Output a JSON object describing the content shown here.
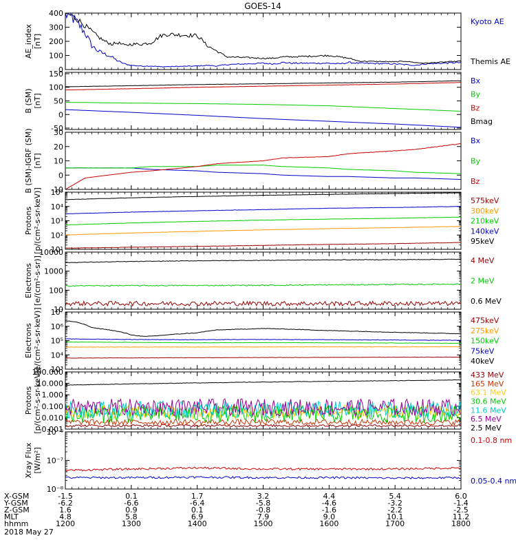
{
  "title": "GOES-14",
  "date_label": "2018 May 27",
  "chart_data": [
    {
      "id": "ae",
      "type": "line",
      "ylabel": [
        "AE_index",
        "[nT]"
      ],
      "yscale": "linear",
      "ylim": [
        0,
        400
      ],
      "yticks": [
        0,
        100,
        200,
        300,
        400
      ],
      "ytick_labels": [
        "0",
        "100",
        "200",
        "300",
        "400"
      ],
      "series": [
        {
          "name": "Kyoto AE",
          "color": "#0000cc",
          "x": [
            1200,
            1210,
            1220,
            1230,
            1240,
            1250,
            1260,
            1270,
            1280,
            1290,
            1300,
            1315,
            1330,
            1345,
            1400,
            1415,
            1430,
            1445,
            1500,
            1515,
            1530,
            1545,
            1600,
            1615,
            1630,
            1645,
            1700,
            1715,
            1730,
            1745,
            1800
          ],
          "values": [
            390,
            370,
            320,
            260,
            170,
            130,
            110,
            90,
            60,
            40,
            30,
            25,
            25,
            20,
            25,
            30,
            25,
            35,
            45,
            40,
            50,
            45,
            45,
            40,
            50,
            45,
            40,
            35,
            30,
            40,
            50
          ],
          "noise": 0.12
        },
        {
          "name": "Themis AE",
          "color": "#000000",
          "x": [
            1200,
            1210,
            1220,
            1230,
            1240,
            1250,
            1260,
            1270,
            1280,
            1290,
            1300,
            1315,
            1330,
            1345,
            1355,
            1400,
            1405,
            1415,
            1430,
            1445,
            1500,
            1515,
            1530,
            1545,
            1600,
            1615,
            1630,
            1645,
            1700,
            1715,
            1730,
            1745,
            1800
          ],
          "values": [
            400,
            380,
            350,
            310,
            270,
            230,
            200,
            180,
            190,
            170,
            180,
            180,
            190,
            240,
            250,
            240,
            220,
            170,
            130,
            90,
            80,
            80,
            90,
            90,
            100,
            90,
            80,
            60,
            55,
            60,
            50,
            45,
            60
          ],
          "noise": 0.06
        }
      ]
    },
    {
      "id": "bsm",
      "type": "line",
      "ylabel": [
        "B (SM)",
        "[nT]"
      ],
      "yscale": "linear",
      "ylim": [
        -55,
        155
      ],
      "yticks": [
        -50,
        0,
        50,
        100,
        150
      ],
      "ytick_labels": [
        "-50",
        "0",
        "50",
        "100",
        "150"
      ],
      "series": [
        {
          "name": "Bx",
          "color": "#0000cc",
          "x": [
            1200,
            1300,
            1400,
            1500,
            1600,
            1700,
            1800
          ],
          "values": [
            18,
            8,
            -3,
            -15,
            -25,
            -35,
            -47
          ],
          "noise": 0.004
        },
        {
          "name": "By",
          "color": "#00cc00",
          "x": [
            1200,
            1300,
            1400,
            1500,
            1600,
            1700,
            1800
          ],
          "values": [
            45,
            42,
            40,
            37,
            32,
            22,
            12
          ],
          "noise": 0.004
        },
        {
          "name": "Bz",
          "color": "#cc0000",
          "x": [
            1200,
            1300,
            1400,
            1500,
            1600,
            1700,
            1800
          ],
          "values": [
            90,
            95,
            100,
            104,
            108,
            112,
            118
          ],
          "noise": 0.004
        },
        {
          "name": "Bmag",
          "color": "#000000",
          "x": [
            1200,
            1300,
            1400,
            1500,
            1600,
            1700,
            1800
          ],
          "values": [
            102,
            106,
            110,
            113,
            116,
            119,
            124
          ],
          "noise": 0.004
        }
      ]
    },
    {
      "id": "bigrf",
      "type": "line",
      "ylabel": [
        "B (SM)-IGRF (SM)",
        "[nT]"
      ],
      "yscale": "linear",
      "ylim": [
        -10,
        30
      ],
      "yticks": [
        -10,
        0,
        10,
        20,
        30
      ],
      "ytick_labels": [
        "-10",
        "0",
        "10",
        "20",
        "30"
      ],
      "series": [
        {
          "name": "Bx",
          "color": "#0000cc",
          "x": [
            1200,
            1230,
            1300,
            1330,
            1400,
            1430,
            1500,
            1530,
            1600,
            1630,
            1700,
            1730,
            1800
          ],
          "values": [
            5,
            5,
            5,
            4,
            3,
            2,
            1,
            0,
            -1,
            -1,
            -2,
            -2,
            -3
          ],
          "noise": 0.01
        },
        {
          "name": "By",
          "color": "#00cc00",
          "x": [
            1200,
            1230,
            1300,
            1330,
            1400,
            1430,
            1500,
            1530,
            1600,
            1630,
            1700,
            1730,
            1800
          ],
          "values": [
            5,
            5,
            5,
            6,
            6,
            7,
            7,
            6,
            5,
            4,
            3,
            2,
            1
          ],
          "noise": 0.01
        },
        {
          "name": "Bz",
          "color": "#cc0000",
          "x": [
            1200,
            1230,
            1300,
            1330,
            1400,
            1430,
            1500,
            1530,
            1600,
            1630,
            1700,
            1730,
            1800
          ],
          "values": [
            -10,
            -2,
            2,
            3,
            6,
            8,
            10,
            12,
            13,
            15,
            17,
            18,
            22
          ],
          "noise": 0.01
        }
      ]
    },
    {
      "id": "protons_low",
      "type": "line",
      "ylabel": [
        "Protons",
        "[p/(cm²-s-sr-keV)]"
      ],
      "yscale": "log",
      "ylim": [
        10,
        100000
      ],
      "yticks": [
        10,
        100,
        1000,
        10000,
        100000
      ],
      "ytick_labels": [
        "10¹",
        "10²",
        "10³",
        "10⁴",
        "10⁵"
      ],
      "series": [
        {
          "name": "575keV",
          "color": "#990000",
          "x": [
            1200,
            1300,
            1400,
            1500,
            1600,
            1700,
            1800
          ],
          "values": [
            12,
            14,
            16,
            19,
            22,
            25,
            30
          ],
          "noise": 0.01
        },
        {
          "name": "300keV",
          "color": "#ff9900",
          "x": [
            1200,
            1300,
            1400,
            1500,
            1600,
            1700,
            1800
          ],
          "values": [
            100,
            140,
            180,
            230,
            280,
            330,
            400
          ],
          "noise": 0.01
        },
        {
          "name": "210keV",
          "color": "#00cc00",
          "x": [
            1200,
            1300,
            1400,
            1500,
            1600,
            1700,
            1800
          ],
          "values": [
            500,
            700,
            900,
            1100,
            1300,
            1500,
            1800
          ],
          "noise": 0.01
        },
        {
          "name": "140keV",
          "color": "#0000cc",
          "x": [
            1200,
            1300,
            1400,
            1500,
            1600,
            1700,
            1800
          ],
          "values": [
            3000,
            4000,
            5000,
            6000,
            7500,
            8500,
            10000
          ],
          "noise": 0.01
        },
        {
          "name": "95keV",
          "color": "#000000",
          "x": [
            1200,
            1300,
            1400,
            1500,
            1600,
            1700,
            1800
          ],
          "values": [
            30000,
            40000,
            50000,
            60000,
            70000,
            80000,
            90000
          ],
          "noise": 0.01
        }
      ]
    },
    {
      "id": "electrons_high",
      "type": "line",
      "ylabel": [
        "Electrons",
        "[e/(cm²-s-sr)]"
      ],
      "yscale": "log",
      "ylim": [
        10,
        10000
      ],
      "yticks": [
        10,
        100,
        1000,
        10000
      ],
      "ytick_labels": [
        "10",
        "100",
        "1000",
        "10000"
      ],
      "series": [
        {
          "name": "4 MeV",
          "color": "#990000",
          "x": [
            1200,
            1800
          ],
          "values": [
            20,
            20
          ],
          "noise": 0.12
        },
        {
          "name": "2 MeV",
          "color": "#00cc00",
          "x": [
            1200,
            1500,
            1800
          ],
          "values": [
            170,
            180,
            210
          ],
          "noise": 0.03
        },
        {
          "name": "0.6 MeV",
          "color": "#000000",
          "x": [
            1200,
            1300,
            1400,
            1500,
            1600,
            1700,
            1800
          ],
          "values": [
            2800,
            3200,
            3500,
            3700,
            3900,
            4000,
            4200
          ],
          "noise": 0.015
        }
      ]
    },
    {
      "id": "electrons_low",
      "type": "line",
      "ylabel": [
        "Electrons",
        "[e/(cm²-s-sr-keV)]"
      ],
      "yscale": "log",
      "ylim": [
        1000,
        10000000
      ],
      "yticks": [
        1000,
        10000,
        100000,
        1000000,
        10000000
      ],
      "ytick_labels": [
        "10³",
        "10⁴",
        "10⁵",
        "10⁶",
        "10⁷"
      ],
      "series": [
        {
          "name": "475keV",
          "color": "#990000",
          "x": [
            1200,
            1500,
            1800
          ],
          "values": [
            6000,
            6500,
            7000
          ],
          "noise": 0.01
        },
        {
          "name": "275keV",
          "color": "#ff9900",
          "x": [
            1200,
            1500,
            1800
          ],
          "values": [
            35000,
            36000,
            37000
          ],
          "noise": 0.01
        },
        {
          "name": "150keV",
          "color": "#00cc00",
          "x": [
            1200,
            1300,
            1400,
            1500,
            1600,
            1700,
            1800
          ],
          "values": [
            80000,
            75000,
            70000,
            72000,
            70000,
            68000,
            65000
          ],
          "noise": 0.01
        },
        {
          "name": "75keV",
          "color": "#0000cc",
          "x": [
            1200,
            1300,
            1400,
            1500,
            1600,
            1700,
            1800
          ],
          "values": [
            130000,
            120000,
            115000,
            120000,
            115000,
            110000,
            105000
          ],
          "noise": 0.015
        },
        {
          "name": "40keV",
          "color": "#000000",
          "x": [
            1200,
            1220,
            1240,
            1300,
            1320,
            1340,
            1400,
            1430,
            1500,
            1530,
            1600,
            1700,
            1800
          ],
          "values": [
            2500000,
            1800000,
            800000,
            250000,
            190000,
            220000,
            350000,
            550000,
            700000,
            650000,
            500000,
            380000,
            300000
          ],
          "noise": 0.02
        }
      ]
    },
    {
      "id": "protons_high",
      "type": "line",
      "ylabel": [
        "Protons",
        "[p/(cm²-s-sr-keV)]"
      ],
      "yscale": "log",
      "ylim": [
        0.001,
        100
      ],
      "yticks": [
        0.001,
        0.01,
        0.1,
        1,
        10,
        100
      ],
      "ytick_labels": [
        "0.001",
        "0.010",
        "0.100",
        "1.000",
        "10.000",
        "100.000"
      ],
      "series": [
        {
          "name": "433 MeV",
          "color": "#990000",
          "x": [
            1200,
            1800
          ],
          "values": [
            0.002,
            0.002
          ],
          "noise": 0.1
        },
        {
          "name": "165 MeV",
          "color": "#cc3300",
          "x": [
            1200,
            1800
          ],
          "values": [
            0.004,
            0.004
          ],
          "noise": 0.25
        },
        {
          "name": "63.1 MeV",
          "color": "#ffcc00",
          "x": [
            1200,
            1800
          ],
          "values": [
            0.03,
            0.03
          ],
          "noise": 0.6
        },
        {
          "name": "30.6 MeV",
          "color": "#00cc00",
          "x": [
            1200,
            1800
          ],
          "values": [
            0.02,
            0.02
          ],
          "noise": 0.75
        },
        {
          "name": "11.6 MeV",
          "color": "#00cccc",
          "x": [
            1200,
            1800
          ],
          "values": [
            0.05,
            0.05
          ],
          "noise": 0.75
        },
        {
          "name": "6.5 MeV",
          "color": "#990099",
          "x": [
            1200,
            1800
          ],
          "values": [
            0.08,
            0.08
          ],
          "noise": 0.75
        },
        {
          "name": "2.5 MeV",
          "color": "#000000",
          "x": [
            1200,
            1300,
            1400,
            1500,
            1600,
            1700,
            1800
          ],
          "values": [
            7,
            9,
            11,
            13,
            15,
            17,
            20
          ],
          "noise": 0.02
        }
      ]
    },
    {
      "id": "xray",
      "type": "line",
      "ylabel": [
        "Xray Flux",
        "[W/m²]"
      ],
      "yscale": "log",
      "ylim": [
        1e-08,
        1e-06
      ],
      "yticks": [
        1e-08,
        1e-07,
        1e-06
      ],
      "ytick_labels": [
        "10⁻⁸",
        "10⁻⁷",
        "10⁻⁶"
      ],
      "series": [
        {
          "name": "0.1-0.8 nm",
          "color": "#cc0000",
          "x": [
            1200,
            1300,
            1400,
            1500,
            1600,
            1700,
            1800
          ],
          "values": [
            4.5e-08,
            5e-08,
            5.5e-08,
            5e-08,
            5e-08,
            5e-08,
            5.5e-08
          ],
          "noise": 0.035
        },
        {
          "name": "0.05-0.4 nm",
          "color": "#0000cc",
          "x": [
            1200,
            1300,
            1400,
            1500,
            1600,
            1700,
            1800
          ],
          "values": [
            2.5e-08,
            2.5e-08,
            2.6e-08,
            2.5e-08,
            2.5e-08,
            2.4e-08,
            2.5e-08
          ],
          "noise": 0.035
        }
      ]
    }
  ],
  "x_axis": {
    "range": [
      1200,
      1800
    ],
    "row_labels": [
      "X-GSM",
      "Y-GSM",
      "Z-GSM",
      "MLT",
      "hhmm"
    ],
    "ticks": [
      {
        "x": 1200,
        "values": [
          "-1.5",
          "-6.2",
          "1.6",
          "4.8",
          "1200"
        ]
      },
      {
        "x": 1300,
        "values": [
          "0.1",
          "-6.6",
          "0.9",
          "5.8",
          "1300"
        ]
      },
      {
        "x": 1400,
        "values": [
          "1.7",
          "-6.4",
          "0.1",
          "6.9",
          "1400"
        ]
      },
      {
        "x": 1500,
        "values": [
          "3.2",
          "-5.8",
          "-0.8",
          "7.9",
          "1500"
        ]
      },
      {
        "x": 1600,
        "values": [
          "4.4",
          "-4.6",
          "-1.6",
          "9.0",
          "1600"
        ]
      },
      {
        "x": 1700,
        "values": [
          "5.4",
          "-3.2",
          "-2.2",
          "10.1",
          "1700"
        ]
      },
      {
        "x": 1800,
        "values": [
          "6.0",
          "-1.4",
          "-2.5",
          "11.2",
          "1800"
        ]
      }
    ]
  }
}
